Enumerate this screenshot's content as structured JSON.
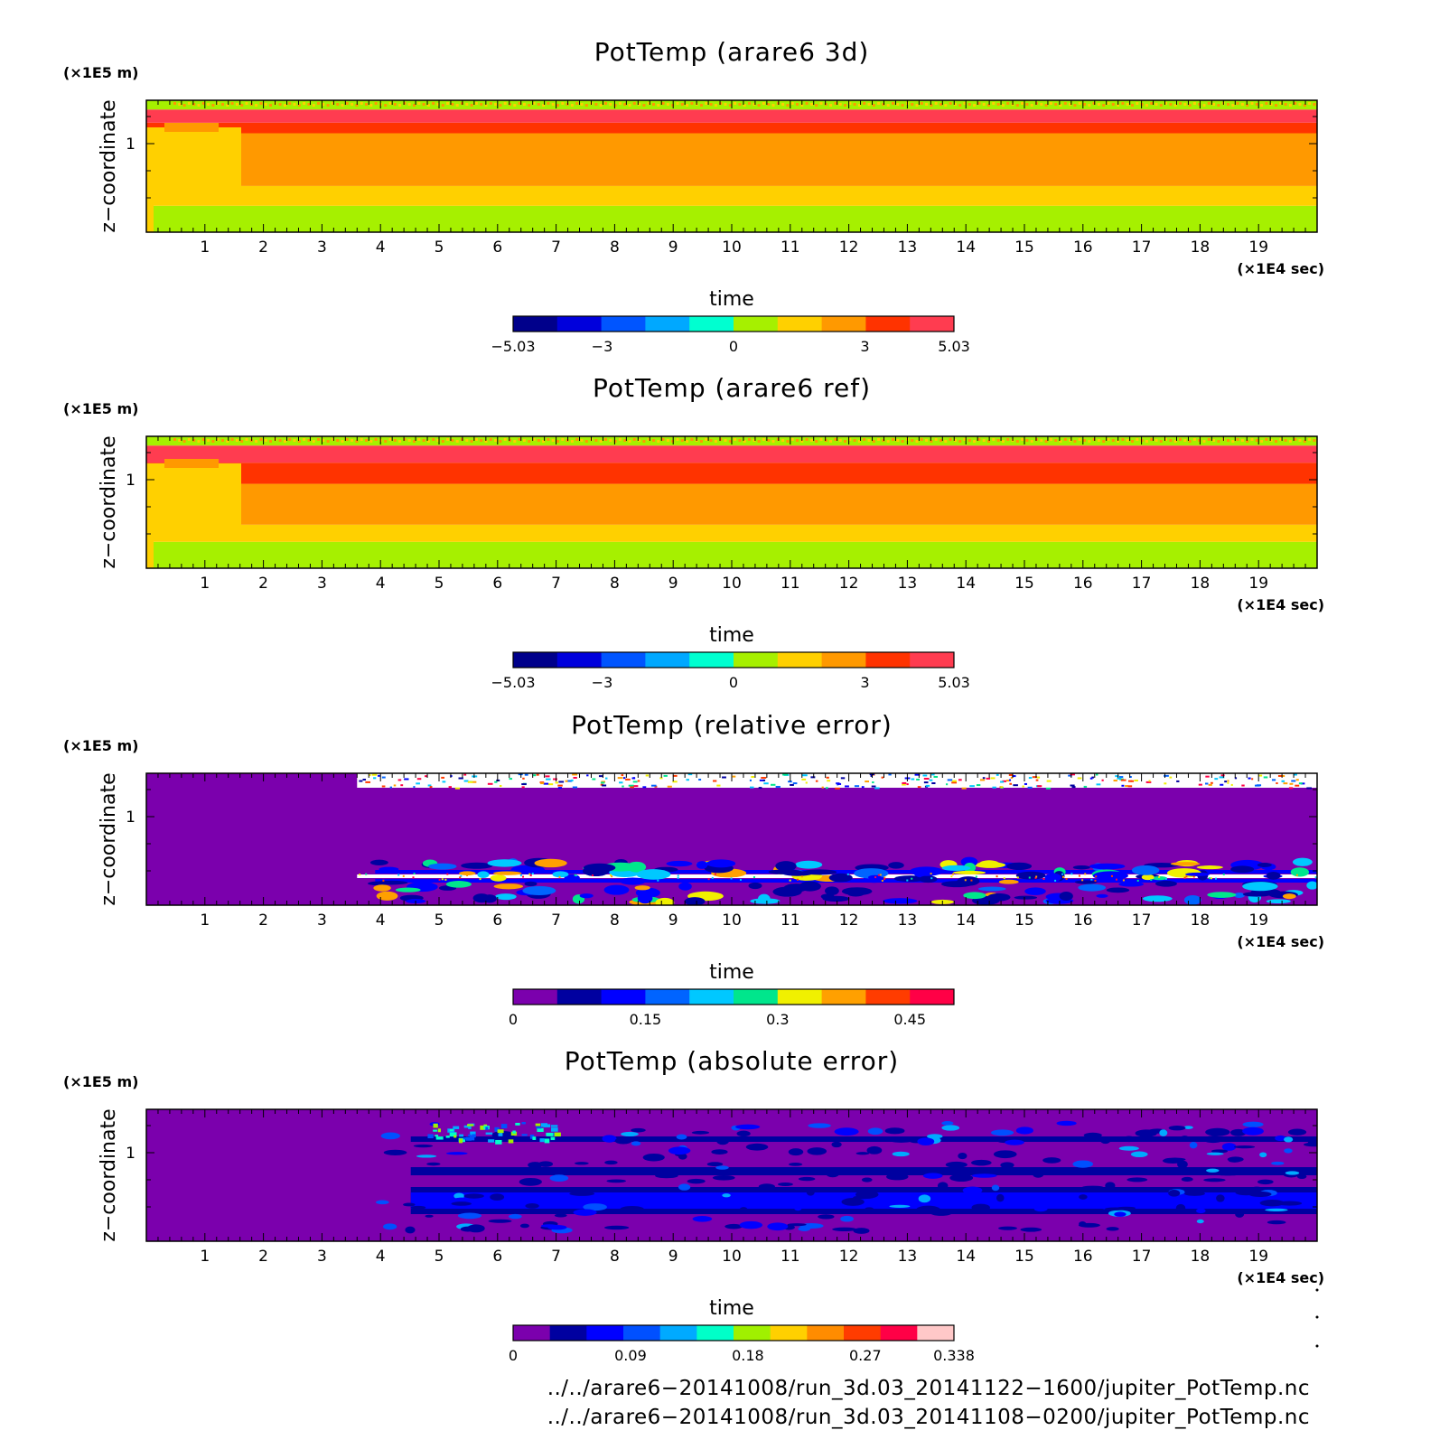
{
  "colors": {
    "diverging_scale": [
      "#00008b",
      "#0000dc",
      "#0055ff",
      "#00a8ff",
      "#00ffd0",
      "#a6f000",
      "#ffd000",
      "#ff9900",
      "#ff3300",
      "#ff3c50"
    ],
    "error_scale_relative": [
      "#7b00ad",
      "#0000a0",
      "#0000ff",
      "#0064ff",
      "#00c8ff",
      "#00e68c",
      "#f0f000",
      "#ffa000",
      "#ff3c00",
      "#ff0046"
    ],
    "error_scale_absolute": [
      "#7b00ad",
      "#0000a0",
      "#0000ff",
      "#0050ff",
      "#00aaff",
      "#00ffc8",
      "#a0f000",
      "#ffd000",
      "#ff8c00",
      "#ff3c00",
      "#ff0046",
      "#ffc8c8"
    ]
  },
  "chart_data": [
    {
      "type": "heatmap",
      "title": "PotTemp (arare6 3d)",
      "xlabel": "time",
      "ylabel": "z−coordinate",
      "x_unit": "(×1E4 sec)",
      "y_unit": "(×1E5 m)",
      "x_ticks": [
        1,
        2,
        3,
        4,
        5,
        6,
        7,
        8,
        9,
        10,
        11,
        12,
        13,
        14,
        15,
        16,
        17,
        18,
        19
      ],
      "y_ticks": [
        1
      ],
      "xlim": [
        0,
        20
      ],
      "colorbar": {
        "min": -5.03,
        "max": 5.03,
        "ticks": [
          "−5.03",
          "−3",
          "0",
          "3",
          "5.03"
        ],
        "levels": 10
      },
      "bands": [
        {
          "z_from": 0.0,
          "z_to": 0.2,
          "value": 0.5
        },
        {
          "z_from": 0.2,
          "z_to": 0.35,
          "value": 1.5
        },
        {
          "z_from": 0.35,
          "z_to": 0.75,
          "value": 2.5
        },
        {
          "z_from": 0.75,
          "z_to": 0.83,
          "value": 3.5
        },
        {
          "z_from": 0.83,
          "z_to": 0.93,
          "value": 4.5
        },
        {
          "z_from": 0.93,
          "z_to": 1.0,
          "value": 0.5
        }
      ]
    },
    {
      "type": "heatmap",
      "title": "PotTemp (arare6 ref)",
      "xlabel": "time",
      "ylabel": "z−coordinate",
      "x_unit": "(×1E4 sec)",
      "y_unit": "(×1E5 m)",
      "x_ticks": [
        1,
        2,
        3,
        4,
        5,
        6,
        7,
        8,
        9,
        10,
        11,
        12,
        13,
        14,
        15,
        16,
        17,
        18,
        19
      ],
      "y_ticks": [
        1
      ],
      "xlim": [
        0,
        20
      ],
      "colorbar": {
        "min": -5.03,
        "max": 5.03,
        "ticks": [
          "−5.03",
          "−3",
          "0",
          "3",
          "5.03"
        ],
        "levels": 10
      },
      "bands": [
        {
          "z_from": 0.0,
          "z_to": 0.2,
          "value": 0.5
        },
        {
          "z_from": 0.2,
          "z_to": 0.33,
          "value": 1.5
        },
        {
          "z_from": 0.33,
          "z_to": 0.64,
          "value": 2.5
        },
        {
          "z_from": 0.64,
          "z_to": 0.8,
          "value": 3.5
        },
        {
          "z_from": 0.8,
          "z_to": 0.93,
          "value": 4.5
        },
        {
          "z_from": 0.93,
          "z_to": 1.0,
          "value": 0.5
        }
      ]
    },
    {
      "type": "heatmap",
      "title": "PotTemp (relative error)",
      "xlabel": "time",
      "ylabel": "z−coordinate",
      "x_unit": "(×1E4 sec)",
      "y_unit": "(×1E5 m)",
      "x_ticks": [
        1,
        2,
        3,
        4,
        5,
        6,
        7,
        8,
        9,
        10,
        11,
        12,
        13,
        14,
        15,
        16,
        17,
        18,
        19
      ],
      "y_ticks": [
        1
      ],
      "xlim": [
        0,
        20
      ],
      "colorbar": {
        "min": 0,
        "max": 0.5,
        "ticks": [
          "0",
          "0.15",
          "0.3",
          "0.45"
        ],
        "levels": 10
      },
      "error_onset_x": 3.6
    },
    {
      "type": "heatmap",
      "title": "PotTemp (absolute error)",
      "xlabel": "time",
      "ylabel": "z−coordinate",
      "x_unit": "(×1E4 sec)",
      "y_unit": "(×1E5 m)",
      "x_ticks": [
        1,
        2,
        3,
        4,
        5,
        6,
        7,
        8,
        9,
        10,
        11,
        12,
        13,
        14,
        15,
        16,
        17,
        18,
        19
      ],
      "y_ticks": [
        1
      ],
      "xlim": [
        0,
        20
      ],
      "colorbar": {
        "min": 0,
        "max": 0.338,
        "ticks": [
          "0",
          "0.09",
          "0.18",
          "0.27",
          "0.338"
        ],
        "levels": 12
      },
      "error_onset_x": 3.9
    }
  ],
  "footer": {
    "file1": "../../arare6−20141008/run_3d.03_20141122−1600/jupiter_PotTemp.nc",
    "file2": "../../arare6−20141008/run_3d.03_20141108−0200/jupiter_PotTemp.nc"
  }
}
